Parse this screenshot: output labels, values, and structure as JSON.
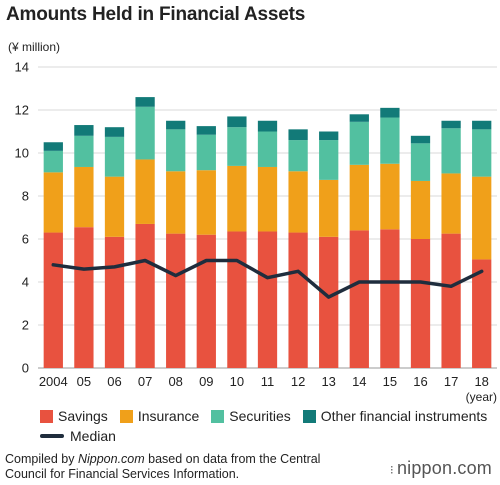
{
  "title": "Amounts Held in Financial Assets",
  "source": {
    "prefix": "Compiled by ",
    "site": "Nippon.com",
    "suffix": " based on data from the Central Council for Financial Services Information."
  },
  "brand": {
    "mark": "⁝",
    "name": "nippon.com"
  },
  "colors": {
    "savings": "#e8523f",
    "insurance": "#f0a01a",
    "securities": "#52c0a0",
    "other": "#127a78",
    "median": "#1f2d3d",
    "grid": "#d9d9d9"
  },
  "chart_data": {
    "type": "bar",
    "stacked": true,
    "title": "Amounts Held in Financial Assets",
    "ylabel": "(¥ million)",
    "xlabel": "(year)",
    "ylim": [
      0,
      14
    ],
    "yticks": [
      0,
      2,
      4,
      6,
      8,
      10,
      12,
      14
    ],
    "grid": true,
    "legend_position": "bottom",
    "categories": [
      "2004",
      "05",
      "06",
      "07",
      "08",
      "09",
      "10",
      "11",
      "12",
      "13",
      "14",
      "15",
      "16",
      "17",
      "18"
    ],
    "series": [
      {
        "name": "Savings",
        "key": "savings",
        "values": [
          6.3,
          6.55,
          6.1,
          6.7,
          6.25,
          6.2,
          6.35,
          6.35,
          6.3,
          6.1,
          6.4,
          6.45,
          6.0,
          6.25,
          5.05
        ]
      },
      {
        "name": "Insurance",
        "key": "insurance",
        "values": [
          2.8,
          2.8,
          2.8,
          3.0,
          2.9,
          3.0,
          3.05,
          3.0,
          2.85,
          2.65,
          3.05,
          3.05,
          2.7,
          2.8,
          3.85
        ]
      },
      {
        "name": "Securities",
        "key": "securities",
        "values": [
          1.0,
          1.45,
          1.85,
          2.45,
          1.95,
          1.65,
          1.8,
          1.65,
          1.45,
          1.85,
          2.0,
          2.15,
          1.75,
          2.1,
          2.2
        ]
      },
      {
        "name": "Other financial instruments",
        "key": "other",
        "values": [
          0.4,
          0.5,
          0.45,
          0.45,
          0.4,
          0.4,
          0.5,
          0.5,
          0.5,
          0.4,
          0.35,
          0.45,
          0.35,
          0.35,
          0.4
        ]
      }
    ],
    "line_series": {
      "name": "Median",
      "key": "median",
      "values": [
        4.8,
        4.6,
        4.7,
        5.0,
        4.3,
        5.0,
        5.0,
        4.2,
        4.5,
        3.3,
        4.0,
        4.0,
        4.0,
        3.8,
        4.5
      ]
    }
  }
}
